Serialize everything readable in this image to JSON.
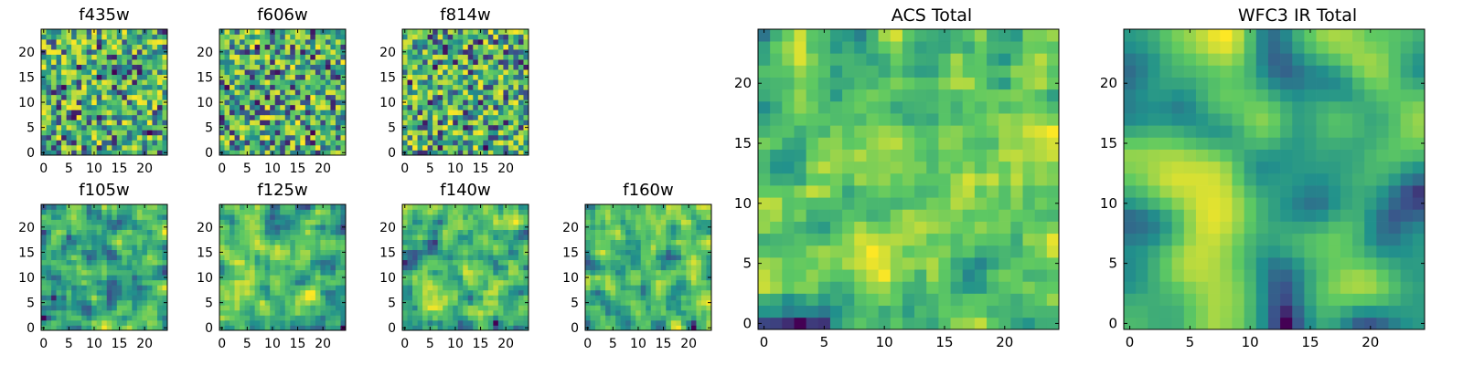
{
  "figure": {
    "colormap": "viridis",
    "colormap_stops": [
      "#440154",
      "#3b528b",
      "#21918c",
      "#5ec962",
      "#fde725"
    ],
    "background": "#ffffff"
  },
  "chart_data": [
    {
      "id": "f435w",
      "type": "heatmap",
      "title": "f435w",
      "grid_size": [
        25,
        25
      ],
      "xlim": [
        0,
        24
      ],
      "ylim": [
        0,
        24
      ],
      "xticks": [
        0,
        5,
        10,
        15,
        20
      ],
      "yticks": [
        0,
        5,
        10,
        15,
        20
      ],
      "style": "noisy",
      "seed": 11
    },
    {
      "id": "f606w",
      "type": "heatmap",
      "title": "f606w",
      "grid_size": [
        25,
        25
      ],
      "xlim": [
        0,
        24
      ],
      "ylim": [
        0,
        24
      ],
      "xticks": [
        0,
        5,
        10,
        15,
        20
      ],
      "yticks": [
        0,
        5,
        10,
        15,
        20
      ],
      "style": "noisy",
      "seed": 23
    },
    {
      "id": "f814w",
      "type": "heatmap",
      "title": "f814w",
      "grid_size": [
        25,
        25
      ],
      "xlim": [
        0,
        24
      ],
      "ylim": [
        0,
        24
      ],
      "xticks": [
        0,
        5,
        10,
        15,
        20
      ],
      "yticks": [
        0,
        5,
        10,
        15,
        20
      ],
      "style": "noisy",
      "seed": 37
    },
    {
      "id": "f105w",
      "type": "heatmap",
      "title": "f105w",
      "grid_size": [
        25,
        25
      ],
      "xlim": [
        0,
        24
      ],
      "ylim": [
        0,
        24
      ],
      "xticks": [
        0,
        5,
        10,
        15,
        20
      ],
      "yticks": [
        0,
        5,
        10,
        15,
        20
      ],
      "style": "blobby",
      "seed": 41
    },
    {
      "id": "f125w",
      "type": "heatmap",
      "title": "f125w",
      "grid_size": [
        25,
        25
      ],
      "xlim": [
        0,
        24
      ],
      "ylim": [
        0,
        24
      ],
      "xticks": [
        0,
        5,
        10,
        15,
        20
      ],
      "yticks": [
        0,
        5,
        10,
        15,
        20
      ],
      "style": "blobby",
      "seed": 53
    },
    {
      "id": "f140w",
      "type": "heatmap",
      "title": "f140w",
      "grid_size": [
        25,
        25
      ],
      "xlim": [
        0,
        24
      ],
      "ylim": [
        0,
        24
      ],
      "xticks": [
        0,
        5,
        10,
        15,
        20
      ],
      "yticks": [
        0,
        5,
        10,
        15,
        20
      ],
      "style": "blobby",
      "seed": 67
    },
    {
      "id": "f160w",
      "type": "heatmap",
      "title": "f160w",
      "grid_size": [
        25,
        25
      ],
      "xlim": [
        0,
        24
      ],
      "ylim": [
        0,
        24
      ],
      "xticks": [
        0,
        5,
        10,
        15,
        20
      ],
      "yticks": [
        0,
        5,
        10,
        15,
        20
      ],
      "style": "blobby",
      "seed": 79
    },
    {
      "id": "acs",
      "type": "heatmap",
      "title": "ACS Total",
      "grid_size": [
        25,
        25
      ],
      "xlim": [
        0,
        24
      ],
      "ylim": [
        0,
        24
      ],
      "xticks": [
        0,
        5,
        10,
        15,
        20
      ],
      "yticks": [
        0,
        5,
        10,
        15,
        20
      ],
      "style": "medium",
      "seed": 97
    },
    {
      "id": "wfc3",
      "type": "heatmap",
      "title": "WFC3 IR Total",
      "grid_size": [
        25,
        25
      ],
      "xlim": [
        0,
        24
      ],
      "ylim": [
        0,
        24
      ],
      "xticks": [
        0,
        5,
        10,
        15,
        20
      ],
      "yticks": [
        0,
        5,
        10,
        15,
        20
      ],
      "style": "smooth",
      "seed": 101
    }
  ]
}
